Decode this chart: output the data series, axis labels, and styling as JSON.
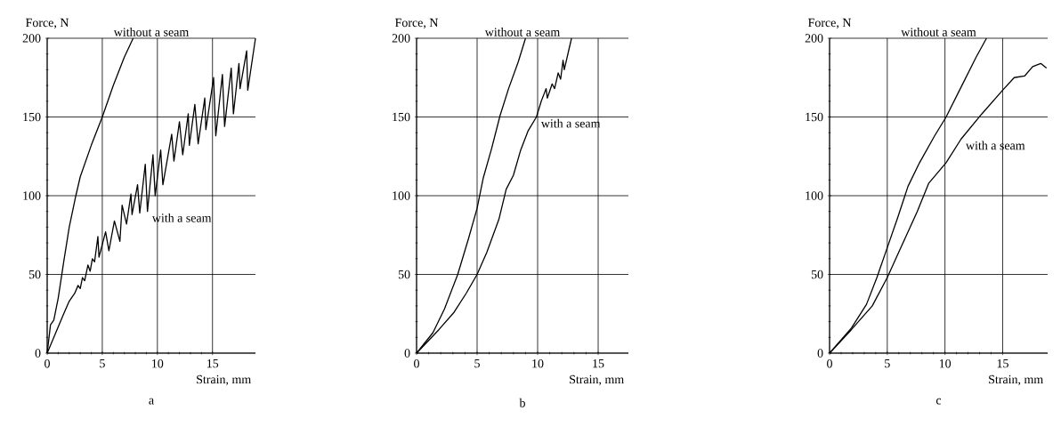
{
  "chart_data": [
    {
      "type": "line",
      "title": "a",
      "xlabel": "Strain, mm",
      "ylabel": "Force, N",
      "xlim": [
        0,
        18.9
      ],
      "ylim": [
        0,
        200
      ],
      "xticks": [
        0,
        5,
        10,
        15
      ],
      "yticks": [
        0,
        50,
        100,
        150,
        200
      ],
      "grid": true,
      "legend": false,
      "series": [
        {
          "name": "without a seam",
          "color": "#000000",
          "x": [
            0,
            0.3,
            0.6,
            1,
            1.5,
            2,
            2.6,
            3,
            4,
            5,
            6,
            7,
            7.8
          ],
          "values": [
            0,
            18,
            21,
            35,
            58,
            80,
            100,
            112,
            132,
            150,
            170,
            188,
            200
          ]
        },
        {
          "name": "with a seam",
          "color": "#000000",
          "x": [
            0,
            1.5,
            2,
            2.5,
            2.8,
            3.0,
            3.2,
            3.4,
            3.7,
            3.9,
            4.1,
            4.3,
            4.6,
            4.7,
            5.3,
            5.6,
            6.1,
            6.6,
            6.8,
            7.2,
            7.6,
            7.7,
            8.2,
            8.4,
            8.9,
            9.1,
            9.6,
            9.8,
            10.3,
            10.5,
            11.3,
            11.5,
            12.0,
            12.3,
            12.8,
            12.9,
            13.4,
            13.7,
            14.3,
            14.4,
            15.1,
            15.3,
            15.9,
            16.1,
            16.7,
            16.9,
            17.4,
            17.5,
            18.1,
            18.2,
            18.9
          ],
          "values": [
            0,
            25,
            33,
            38,
            43,
            41,
            48,
            46,
            56,
            52,
            60,
            58,
            74,
            61,
            77,
            65,
            84,
            71,
            94,
            82,
            101,
            88,
            107,
            89,
            120,
            90,
            126,
            100,
            129,
            107,
            139,
            122,
            147,
            126,
            152,
            132,
            158,
            133,
            162,
            142,
            175,
            138,
            177,
            144,
            181,
            152,
            184,
            168,
            192,
            167,
            200
          ]
        }
      ]
    },
    {
      "type": "line",
      "title": "b",
      "xlabel": "Strain, mm",
      "ylabel": "Force, N",
      "xlim": [
        0,
        17.5
      ],
      "ylim": [
        0,
        200
      ],
      "xticks": [
        0,
        5,
        10,
        15
      ],
      "yticks": [
        0,
        50,
        100,
        150,
        200
      ],
      "grid": true,
      "legend": false,
      "series": [
        {
          "name": "without a seam",
          "color": "#000000",
          "x": [
            0,
            1.35,
            2.3,
            3.4,
            4.3,
            5,
            5.5,
            6.2,
            6.9,
            7.6,
            8.4,
            9.0
          ],
          "values": [
            0,
            13,
            28,
            50,
            73,
            92,
            111,
            130,
            151,
            168,
            185,
            200
          ]
        },
        {
          "name": "with a seam",
          "color": "#000000",
          "x": [
            0,
            1.85,
            3.1,
            4.1,
            5,
            5.8,
            6.8,
            7.4,
            8.0,
            8.6,
            9.2,
            9.9,
            10.3,
            10.7,
            10.8,
            11.2,
            11.4,
            11.7,
            11.9,
            12.1,
            12.2,
            12.8
          ],
          "values": [
            0,
            15,
            26,
            38,
            50,
            64,
            85,
            104,
            113,
            129,
            141,
            150,
            160,
            168,
            162,
            171,
            168,
            178,
            174,
            186,
            180,
            200
          ]
        }
      ]
    },
    {
      "type": "line",
      "title": "c",
      "xlabel": "Strain, mm",
      "ylabel": "Force, N",
      "xlim": [
        0,
        18.9
      ],
      "ylim": [
        0,
        200
      ],
      "xticks": [
        0,
        5,
        10,
        15
      ],
      "yticks": [
        0,
        50,
        100,
        150,
        200
      ],
      "grid": true,
      "legend": false,
      "series": [
        {
          "name": "without a seam",
          "color": "#000000",
          "x": [
            0,
            1.9,
            3.2,
            4.1,
            5,
            5.9,
            6.8,
            7.8,
            9.1,
            10.1,
            11.4,
            12.7,
            13.6
          ],
          "values": [
            0,
            16,
            31,
            48,
            67,
            86,
            106,
            121,
            138,
            150,
            169,
            188,
            200
          ]
        },
        {
          "name": "with a seam",
          "color": "#000000",
          "x": [
            0,
            1.9,
            3.7,
            5,
            6.3,
            7.6,
            8.6,
            10.1,
            11.4,
            13.2,
            15,
            16,
            16.9,
            17.6,
            18.3,
            18.8
          ],
          "values": [
            0,
            15,
            30,
            48,
            69,
            90,
            108,
            121,
            136,
            152,
            167,
            175,
            176,
            182,
            184,
            181
          ]
        }
      ]
    }
  ]
}
